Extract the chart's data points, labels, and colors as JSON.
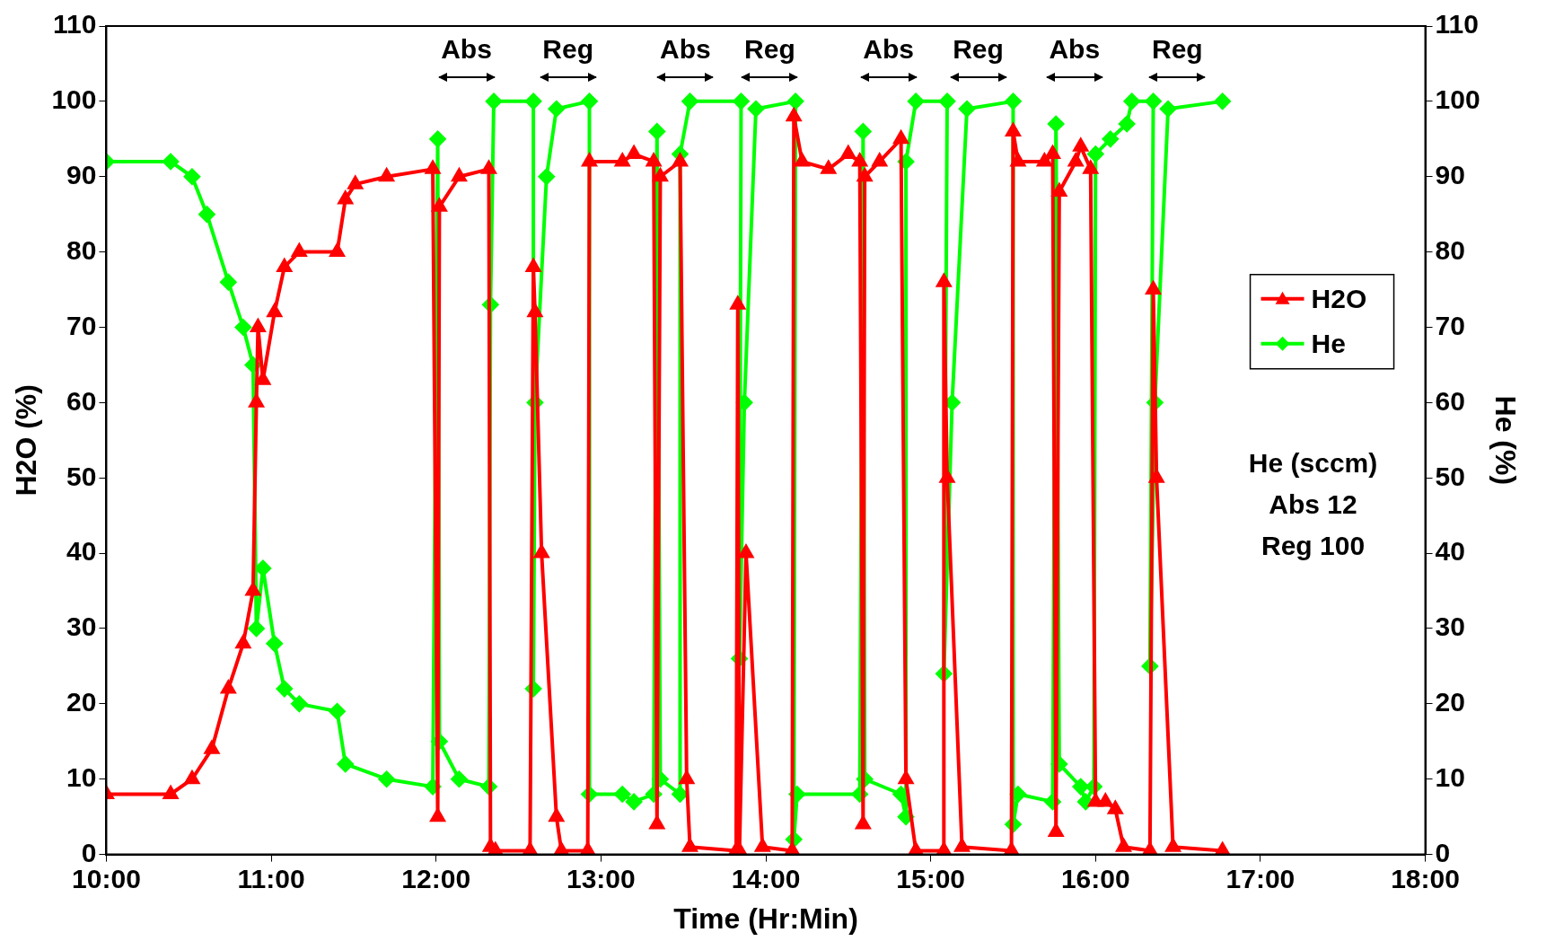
{
  "chart_data": {
    "type": "line",
    "xlabel": "Time (Hr:Min)",
    "ylabel": "H2O (%)",
    "y2label": "He (%)",
    "xlim": [
      10,
      18
    ],
    "xticks": [
      {
        "value": 10,
        "label": "10:00"
      },
      {
        "value": 11,
        "label": "11:00"
      },
      {
        "value": 12,
        "label": "12:00"
      },
      {
        "value": 13,
        "label": "13:00"
      },
      {
        "value": 14,
        "label": "14:00"
      },
      {
        "value": 15,
        "label": "15:00"
      },
      {
        "value": 16,
        "label": "16:00"
      },
      {
        "value": 17,
        "label": "17:00"
      },
      {
        "value": 18,
        "label": "18:00"
      }
    ],
    "ylim": [
      0,
      110
    ],
    "yticks": [
      0,
      10,
      20,
      30,
      40,
      50,
      60,
      70,
      80,
      90,
      100,
      110
    ],
    "y2lim": [
      0,
      110
    ],
    "y2ticks": [
      0,
      10,
      20,
      30,
      40,
      50,
      60,
      70,
      80,
      90,
      100,
      110
    ],
    "grid": false,
    "legend": "right",
    "line_style": "solid",
    "series": [
      {
        "name": "H2O",
        "color": "#ff0000",
        "marker": "triangle",
        "x": [
          10,
          10.39,
          10.52,
          10.64,
          10.74,
          10.83,
          10.89,
          10.91,
          10.92,
          10.95,
          11.02,
          11.08,
          11.17,
          11.4,
          11.45,
          11.51,
          11.7,
          11.98,
          12.01,
          12.02,
          12.14,
          12.32,
          12.33,
          12.36,
          12.57,
          12.59,
          12.6,
          12.64,
          12.73,
          12.76,
          12.92,
          12.93,
          13.13,
          13.2,
          13.32,
          13.34,
          13.36,
          13.48,
          13.52,
          13.54,
          13.82,
          13.83,
          13.84,
          13.88,
          13.98,
          14.16,
          14.17,
          14.22,
          14.38,
          14.5,
          14.57,
          14.59,
          14.6,
          14.69,
          14.82,
          14.85,
          14.91,
          15.08,
          15.08,
          15.1,
          15.19,
          15.49,
          15.5,
          15.53,
          15.69,
          15.74,
          15.76,
          15.78,
          15.88,
          15.91,
          15.97,
          16,
          16.06,
          16.12,
          16.17,
          16.33,
          16.35,
          16.37,
          16.47,
          16.77
        ],
        "values": [
          8,
          8,
          10,
          14,
          22,
          28,
          35,
          60,
          70,
          63,
          72,
          78,
          80,
          80,
          87,
          89,
          90,
          91,
          5,
          86,
          90,
          91,
          1,
          0.5,
          0.5,
          78,
          72,
          40,
          5,
          0.5,
          0.5,
          92,
          92,
          93,
          92,
          4,
          90,
          92,
          10,
          1,
          0.5,
          73,
          0.5,
          40,
          1,
          0.5,
          98,
          92,
          91,
          93,
          92,
          4,
          90,
          92,
          95,
          10,
          0.5,
          0.5,
          76,
          50,
          1,
          0.5,
          96,
          92,
          92,
          93,
          3,
          88,
          92,
          94,
          91,
          7,
          7,
          6,
          1,
          0.5,
          75,
          50,
          1,
          0.5
        ]
      },
      {
        "name": "He",
        "color": "#00ff00",
        "marker": "diamond",
        "axis": "y2",
        "x": [
          10,
          10.39,
          10.52,
          10.61,
          10.74,
          10.83,
          10.89,
          10.91,
          10.95,
          11.02,
          11.08,
          11.17,
          11.4,
          11.45,
          11.7,
          11.98,
          12.01,
          12.02,
          12.14,
          12.32,
          12.33,
          12.35,
          12.59,
          12.59,
          12.6,
          12.67,
          12.73,
          12.93,
          12.93,
          13.13,
          13.2,
          13.32,
          13.34,
          13.36,
          13.48,
          13.48,
          13.54,
          13.85,
          13.84,
          13.87,
          13.94,
          14.18,
          14.17,
          14.19,
          14.57,
          14.59,
          14.6,
          14.82,
          14.85,
          14.85,
          14.91,
          15.1,
          15.08,
          15.13,
          15.22,
          15.5,
          15.5,
          15.53,
          15.74,
          15.76,
          15.78,
          15.91,
          15.94,
          15.99,
          16,
          16.09,
          16.19,
          16.22,
          16.35,
          16.33,
          16.36,
          16.44,
          16.77
        ],
        "values": [
          92,
          92,
          90,
          85,
          76,
          70,
          65,
          30,
          38,
          28,
          22,
          20,
          19,
          12,
          10,
          9,
          95,
          15,
          10,
          9,
          73,
          100,
          100,
          22,
          60,
          90,
          99,
          100,
          8,
          8,
          7,
          8,
          96,
          10,
          8,
          93,
          100,
          100,
          26,
          60,
          99,
          100,
          2,
          8,
          8,
          96,
          10,
          8,
          5,
          92,
          100,
          100,
          24,
          60,
          99,
          100,
          4,
          8,
          7,
          97,
          12,
          9,
          7,
          9,
          93,
          95,
          97,
          100,
          100,
          25,
          60,
          99,
          100
        ]
      }
    ],
    "annotations": [
      "Abs",
      "Reg",
      "Abs",
      "Reg",
      "Abs",
      "Reg",
      "Abs",
      "Reg",
      "He (sccm)\nAbs 12\nReg 100"
    ]
  }
}
